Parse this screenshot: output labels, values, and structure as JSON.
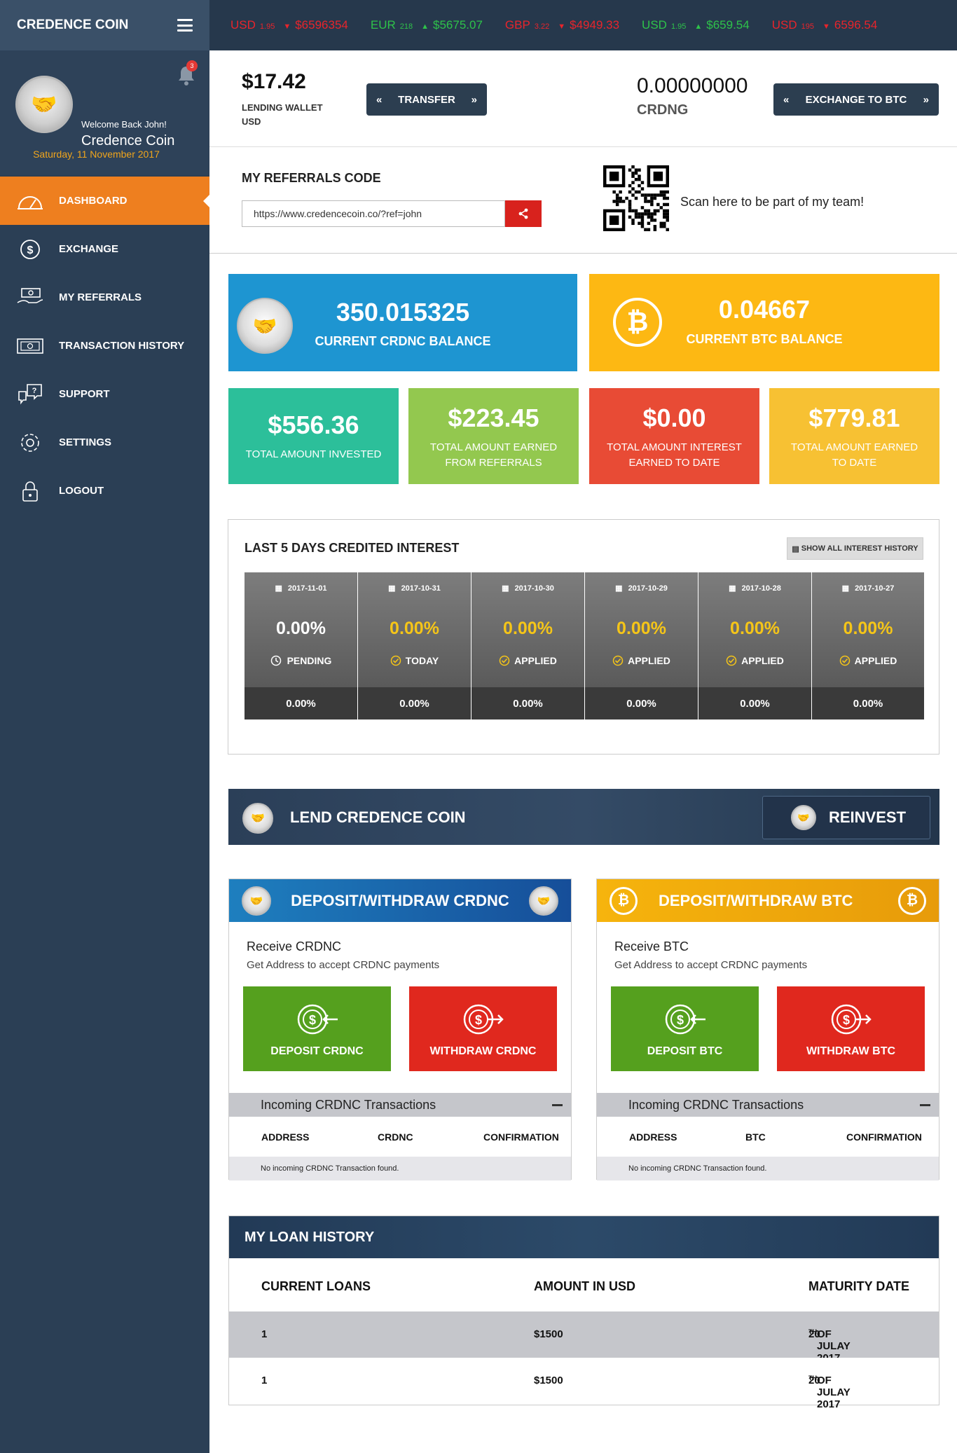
{
  "brand": "CREDENCE COIN",
  "profile": {
    "welcome": "Welcome Back John!",
    "name": "Credence Coin",
    "notifications": "3",
    "date": "Saturday, 11 November 2017"
  },
  "nav": [
    {
      "label": "DASHBOARD",
      "icon": "dashboard-icon"
    },
    {
      "label": "EXCHANGE",
      "icon": "dollar-icon"
    },
    {
      "label": "MY REFERRALS",
      "icon": "referrals-icon"
    },
    {
      "label": "TRANSACTION HISTORY",
      "icon": "transaction-icon"
    },
    {
      "label": "SUPPORT",
      "icon": "support-icon"
    },
    {
      "label": "SETTINGS",
      "icon": "gear-icon"
    },
    {
      "label": "LOGOUT",
      "icon": "lock-icon"
    }
  ],
  "ticker": [
    {
      "cur": "USD",
      "small": "1.95",
      "arrow": "▼",
      "value": "$6596354",
      "color": "red"
    },
    {
      "cur": "EUR",
      "small": "218",
      "arrow": "▲",
      "value": "$5675.07",
      "color": "green"
    },
    {
      "cur": "GBP",
      "small": "3.22",
      "arrow": "▼",
      "value": "$4949.33",
      "color": "red"
    },
    {
      "cur": "USD",
      "small": "1.95",
      "arrow": "▲",
      "value": "$659.54",
      "color": "green"
    },
    {
      "cur": "USD",
      "small": "195",
      "arrow": "▼",
      "value": "6596.54",
      "color": "red"
    }
  ],
  "wallet": {
    "amount": "$17.42",
    "label": "LENDING WALLET USD",
    "transfer": "TRANSFER",
    "crd_amount": "0.00000000",
    "crd_label": "CRDNG",
    "exchange": "EXCHANGE TO BTC"
  },
  "referral": {
    "title": "MY REFERRALS CODE",
    "url": "https://www.credencecoin.co/?ref=john",
    "scan": "Scan here to be part of my team!"
  },
  "balances": {
    "crdnc_value": "350.015325",
    "crdnc_label": "CURRENT CRDNC BALANCE",
    "btc_value": "0.04667",
    "btc_label": "CURRENT BTC BALANCE"
  },
  "stats": [
    {
      "value": "$556.36",
      "label": "TOTAL AMOUNT INVESTED",
      "color": "#2cbf9a"
    },
    {
      "value": "$223.45",
      "label": "TOTAL AMOUNT EARNED FROM REFERRALS",
      "color": "#93c84f"
    },
    {
      "value": "$0.00",
      "label": "TOTAL AMOUNT INTEREST EARNED TO DATE",
      "color": "#e84b35"
    },
    {
      "value": "$779.81",
      "label": "TOTAL AMOUNT EARNED TO DATE",
      "color": "#f7c133"
    }
  ],
  "interest": {
    "title": "LAST 5 DAYS CREDITED INTEREST",
    "button": "SHOW ALL INTEREST HISTORY",
    "days": [
      {
        "date": "2017-11-01",
        "value": "0.00%",
        "status": "PENDING",
        "bottom": "0.00%",
        "highlight": false
      },
      {
        "date": "2017-10-31",
        "value": "0.00%",
        "status": "TODAY",
        "bottom": "0.00%",
        "highlight": true
      },
      {
        "date": "2017-10-30",
        "value": "0.00%",
        "status": "APPLIED",
        "bottom": "0.00%",
        "highlight": true
      },
      {
        "date": "2017-10-29",
        "value": "0.00%",
        "status": "APPLIED",
        "bottom": "0.00%",
        "highlight": true
      },
      {
        "date": "2017-10-28",
        "value": "0.00%",
        "status": "APPLIED",
        "bottom": "0.00%",
        "highlight": true
      },
      {
        "date": "2017-10-27",
        "value": "0.00%",
        "status": "APPLIED",
        "bottom": "0.00%",
        "highlight": true
      }
    ]
  },
  "lend": {
    "title": "LEND CREDENCE COIN",
    "reinvest": "REINVEST"
  },
  "crdnc_panel": {
    "title": "DEPOSIT/WITHDRAW CRDNC",
    "receive": "Receive CRDNC",
    "sub": "Get Address to accept CRDNC payments",
    "deposit": "DEPOSIT CRDNC",
    "withdraw": "WITHDRAW CRDNC",
    "incoming": "Incoming CRDNC Transactions",
    "col1": "ADDRESS",
    "col2": "CRDNC",
    "col3": "CONFIRMATION",
    "empty": "No incoming CRDNC Transaction found."
  },
  "btc_panel": {
    "title": "DEPOSIT/WITHDRAW BTC",
    "receive": "Receive BTC",
    "sub": "Get Address to accept CRDNC payments",
    "deposit": "DEPOSIT BTC",
    "withdraw": "WITHDRAW BTC",
    "incoming": "Incoming CRDNC Transactions",
    "col1": "ADDRESS",
    "col2": "BTC",
    "col3": "CONFIRMATION",
    "empty": "No incoming CRDNC Transaction found."
  },
  "loans": {
    "title": "MY LOAN HISTORY",
    "col1": "CURRENT LOANS",
    "col2": "AMOUNT IN USD",
    "col3": "MATURITY DATE",
    "rows": [
      {
        "loans": "1",
        "amount": "$1500",
        "day": "20",
        "sup": "TH",
        "rest": " OF JULAY 2017"
      },
      {
        "loans": "1",
        "amount": "$1500",
        "day": "20",
        "sup": "TH",
        "rest": " OF JULAY 2017"
      }
    ]
  },
  "colors": {
    "sidebar": "#2b3f55",
    "active": "#ee7f1f",
    "crdnc_blue": "#1e95d1",
    "btc_yellow": "#fdb813",
    "green": "#55a01e",
    "red": "#e0281e"
  }
}
